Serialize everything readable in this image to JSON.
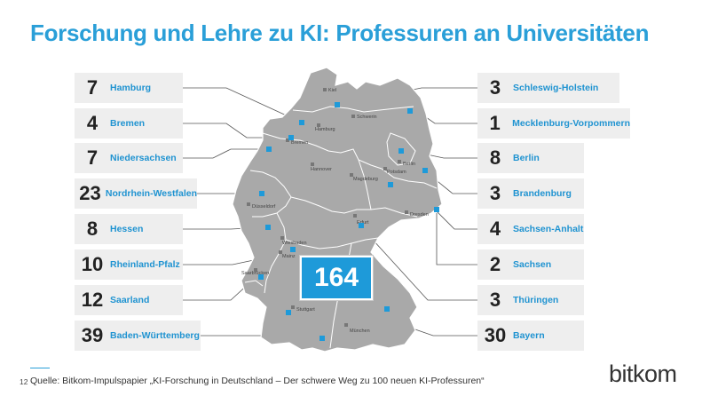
{
  "title": "Forschung und Lehre zu KI: Professuren an Universitäten",
  "total": "164",
  "states_left": [
    {
      "count": "7",
      "name": "Hamburg"
    },
    {
      "count": "4",
      "name": "Bremen"
    },
    {
      "count": "7",
      "name": "Niedersachsen"
    },
    {
      "count": "23",
      "name": "Nordrhein-Westfalen"
    },
    {
      "count": "8",
      "name": "Hessen"
    },
    {
      "count": "10",
      "name": "Rheinland-Pfalz"
    },
    {
      "count": "12",
      "name": "Saarland"
    },
    {
      "count": "39",
      "name": "Baden-Württemberg"
    }
  ],
  "states_right": [
    {
      "count": "3",
      "name": "Schleswig-Holstein"
    },
    {
      "count": "1",
      "name": "Mecklenburg-Vorpommern"
    },
    {
      "count": "8",
      "name": "Berlin"
    },
    {
      "count": "3",
      "name": "Brandenburg"
    },
    {
      "count": "4",
      "name": "Sachsen-Anhalt"
    },
    {
      "count": "2",
      "name": "Sachsen"
    },
    {
      "count": "3",
      "name": "Thüringen"
    },
    {
      "count": "30",
      "name": "Bayern"
    }
  ],
  "cities": {
    "kiel": "Kiel",
    "schwerin": "Schwerin",
    "hamburg": "Hamburg",
    "bremen": "Bremen",
    "hannover": "Hannover",
    "berlin": "Berlin",
    "potsdam": "Potsdam",
    "magdeburg": "Magdeburg",
    "duesseldorf": "Düsseldorf",
    "erfurt": "Erfurt",
    "dresden": "Dresden",
    "wiesbaden": "Wiesbaden",
    "mainz": "Mainz",
    "saarbruecken": "Saarbrücken",
    "stuttgart": "Stuttgart",
    "muenchen": "München"
  },
  "footer": {
    "page_number": "12",
    "source": "Quelle: Bitkom-Impulspapier „KI-Forschung in Deutschland – Der schwere Weg zu 100 neuen KI-Professuren“"
  },
  "logo": {
    "part1": "bit",
    "part2": "kom"
  },
  "colors": {
    "accent": "#1e9ad9",
    "map_fill": "#a9a9a9",
    "box_bg": "#eeeeee"
  }
}
